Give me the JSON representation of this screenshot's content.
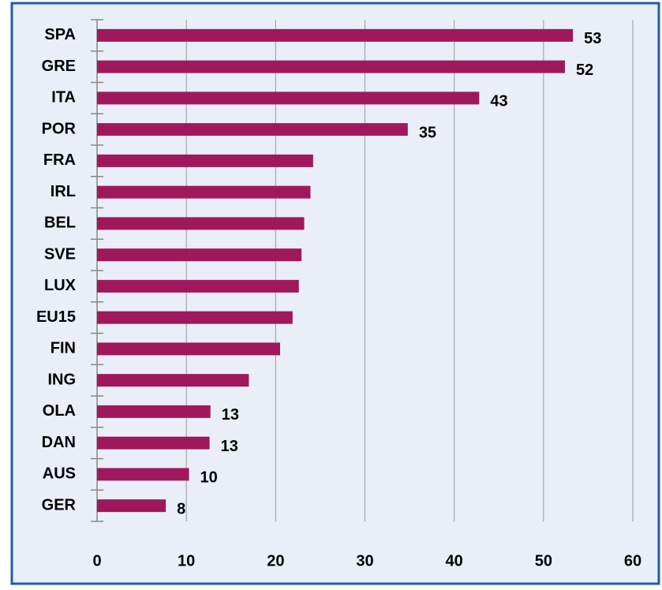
{
  "chart_data": {
    "type": "barh",
    "categories": [
      "SPA",
      "GRE",
      "ITA",
      "POR",
      "FRA",
      "IRL",
      "BEL",
      "SVE",
      "LUX",
      "EU15",
      "FIN",
      "ING",
      "OLA",
      "DAN",
      "AUS",
      "GER"
    ],
    "values": [
      53.3,
      52.4,
      42.8,
      34.8,
      24.2,
      23.9,
      23.2,
      22.9,
      22.6,
      21.9,
      20.5,
      17.0,
      12.7,
      12.6,
      10.3,
      7.7
    ],
    "value_labels": [
      "53",
      "52",
      "43",
      "35",
      null,
      null,
      null,
      null,
      null,
      null,
      null,
      null,
      "13",
      "13",
      "10",
      "8"
    ],
    "color": "#a0185c",
    "xlim": [
      0,
      60
    ],
    "xticks": [
      0,
      10,
      20,
      30,
      40,
      50,
      60
    ],
    "grid": true
  }
}
